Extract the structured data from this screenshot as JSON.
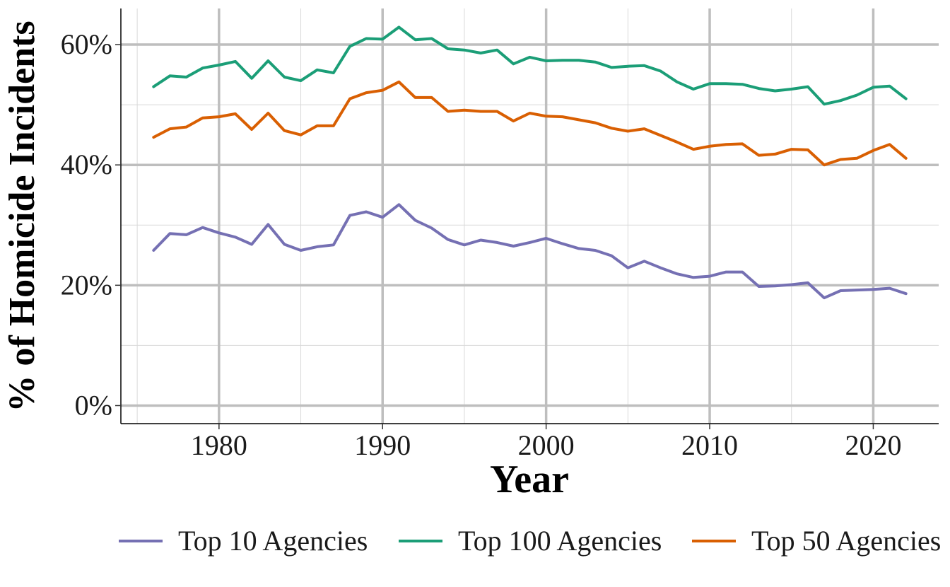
{
  "chart_data": {
    "type": "line",
    "xlabel": "Year",
    "ylabel": "% of Homicide Incidents",
    "xlim": [
      1974,
      2024
    ],
    "ylim": [
      -3,
      66
    ],
    "x_ticks": [
      1980,
      1990,
      2000,
      2010,
      2020
    ],
    "x_tick_labels": [
      "1980",
      "1990",
      "2000",
      "2010",
      "2020"
    ],
    "y_ticks": [
      0,
      20,
      40,
      60
    ],
    "y_tick_labels": [
      "0%",
      "20%",
      "40%",
      "60%"
    ],
    "grid": true,
    "legend_position": "bottom",
    "x": [
      1976,
      1977,
      1978,
      1979,
      1980,
      1981,
      1982,
      1983,
      1984,
      1985,
      1986,
      1987,
      1988,
      1989,
      1990,
      1991,
      1992,
      1993,
      1994,
      1995,
      1996,
      1997,
      1998,
      1999,
      2000,
      2001,
      2002,
      2003,
      2004,
      2005,
      2006,
      2007,
      2008,
      2009,
      2010,
      2011,
      2012,
      2013,
      2014,
      2015,
      2016,
      2017,
      2018,
      2019,
      2020,
      2021,
      2022
    ],
    "series": [
      {
        "name": "Top 10 Agencies",
        "color": "#7570b3",
        "values": [
          25.8,
          28.6,
          28.4,
          29.6,
          28.7,
          28.0,
          26.8,
          30.1,
          26.8,
          25.8,
          26.4,
          26.7,
          31.6,
          32.2,
          31.3,
          33.4,
          30.8,
          29.5,
          27.6,
          26.7,
          27.5,
          27.1,
          26.5,
          27.1,
          27.8,
          26.9,
          26.1,
          25.8,
          24.9,
          22.9,
          24.0,
          22.9,
          21.9,
          21.3,
          21.5,
          22.2,
          22.2,
          19.8,
          19.9,
          20.1,
          20.4,
          17.9,
          19.1,
          19.2,
          19.3,
          19.5,
          18.6
        ]
      },
      {
        "name": "Top 100 Agencies",
        "color": "#1b9e77",
        "values": [
          53.0,
          54.8,
          54.6,
          56.1,
          56.6,
          57.2,
          54.4,
          57.3,
          54.6,
          54.0,
          55.8,
          55.3,
          59.7,
          61.0,
          60.9,
          62.9,
          60.8,
          61.0,
          59.3,
          59.1,
          58.6,
          59.1,
          56.8,
          57.9,
          57.3,
          57.4,
          57.4,
          57.1,
          56.2,
          56.4,
          56.5,
          55.6,
          53.8,
          52.6,
          53.5,
          53.5,
          53.4,
          52.7,
          52.3,
          52.6,
          53.0,
          50.1,
          50.7,
          51.6,
          52.9,
          53.1,
          51.0
        ]
      },
      {
        "name": "Top 50 Agencies",
        "color": "#d95f02",
        "values": [
          44.6,
          46.0,
          46.3,
          47.8,
          48.0,
          48.5,
          45.9,
          48.6,
          45.7,
          45.0,
          46.5,
          46.5,
          51.0,
          52.0,
          52.4,
          53.8,
          51.2,
          51.2,
          48.9,
          49.1,
          48.9,
          48.9,
          47.3,
          48.6,
          48.1,
          48.0,
          47.5,
          47.0,
          46.1,
          45.6,
          46.0,
          44.9,
          43.8,
          42.6,
          43.1,
          43.4,
          43.5,
          41.6,
          41.8,
          42.6,
          42.5,
          40.0,
          40.9,
          41.1,
          42.4,
          43.4,
          41.1
        ]
      }
    ]
  }
}
